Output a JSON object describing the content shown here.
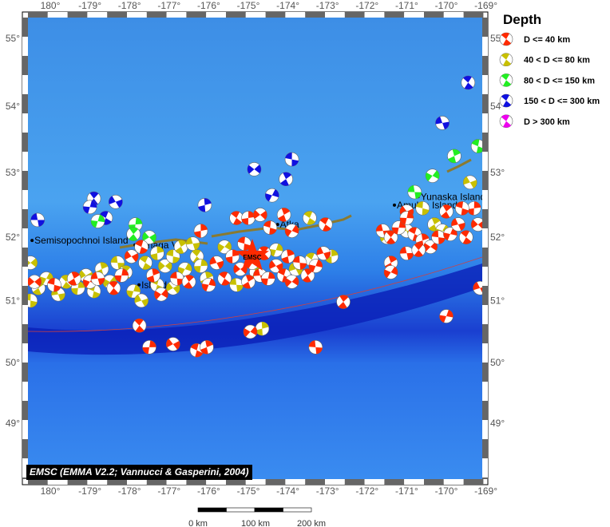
{
  "map": {
    "lon_ticks": [
      "180°",
      "-179°",
      "-178°",
      "-177°",
      "-176°",
      "-175°",
      "-174°",
      "-173°",
      "-172°",
      "-171°",
      "-170°",
      "-169°"
    ],
    "lon_values": [
      180,
      -179,
      -178,
      -177,
      -176,
      -175,
      -174,
      -173,
      -172,
      -171,
      -170,
      -169
    ],
    "lat_ticks": [
      "55°",
      "54°",
      "53°",
      "52°",
      "51°",
      "50°",
      "49°"
    ],
    "lat_values": [
      55,
      54,
      53,
      52,
      51,
      50,
      49
    ],
    "places": [
      {
        "name": "Semisopochnoi Island",
        "lon": 179.6,
        "lat": 51.95
      },
      {
        "name": "Tanaga Vo",
        "lon": -177.8,
        "lat": 51.88
      },
      {
        "name": "Island",
        "lon": -177.7,
        "lat": 51.25
      },
      {
        "name": "Atka",
        "lon": -174.2,
        "lat": 52.2
      },
      {
        "name": "Amukta Island",
        "lon": -171.25,
        "lat": 52.5
      },
      {
        "name": "Yunaska Island",
        "lon": -170.65,
        "lat": 52.63
      }
    ],
    "epicenter": {
      "label": "EMSC",
      "lon": -174.9,
      "lat": 51.7,
      "color": "#ff2a00"
    },
    "credit": "EMSC (EMMA V2.2; Vannucci & Gasperini, 2004)",
    "scale_labels": [
      "0 km",
      "100 km",
      "200 km"
    ]
  },
  "legend": {
    "title": "Depth",
    "items": [
      {
        "label": "D <= 40 km",
        "color": "#ff2a00"
      },
      {
        "label": "40 < D <= 80 km",
        "color": "#c8c000"
      },
      {
        "label": "80 < D <= 150 km",
        "color": "#22ee22"
      },
      {
        "label": "150 < D <= 300 km",
        "color": "#1010e0"
      },
      {
        "label": "D > 300 km",
        "color": "#ee00ee"
      }
    ]
  },
  "events": [
    [
      179.68,
      52.27,
      3
    ],
    [
      -178.9,
      52.6,
      3
    ],
    [
      -179.0,
      52.47,
      3
    ],
    [
      -178.35,
      52.55,
      3
    ],
    [
      -178.6,
      52.3,
      3
    ],
    [
      -176.1,
      52.5,
      3
    ],
    [
      -174.85,
      53.05,
      3
    ],
    [
      -173.9,
      53.2,
      3
    ],
    [
      -174.05,
      52.9,
      3
    ],
    [
      -174.4,
      52.65,
      3
    ],
    [
      -170.1,
      53.75,
      3
    ],
    [
      -169.45,
      54.35,
      3
    ],
    [
      -177.85,
      52.2,
      2
    ],
    [
      -177.5,
      52.0,
      2
    ],
    [
      -169.2,
      53.4,
      2
    ],
    [
      -169.8,
      53.25,
      2
    ],
    [
      -170.35,
      52.95,
      2
    ],
    [
      -170.8,
      52.7,
      2
    ],
    [
      -177.9,
      52.05,
      2
    ],
    [
      -178.8,
      52.25,
      2
    ],
    [
      -169.4,
      52.85,
      1
    ],
    [
      -173.45,
      52.3,
      1
    ],
    [
      -174.65,
      50.55,
      1
    ],
    [
      179.5,
      51.6,
      1
    ],
    [
      179.5,
      51.0,
      1
    ],
    [
      179.7,
      51.2,
      1
    ],
    [
      179.9,
      51.35,
      1
    ],
    [
      -179.8,
      51.1,
      1
    ],
    [
      -179.6,
      51.3,
      1
    ],
    [
      -179.3,
      51.2,
      1
    ],
    [
      -179.1,
      51.4,
      1
    ],
    [
      -178.9,
      51.15,
      1
    ],
    [
      -178.7,
      51.5,
      1
    ],
    [
      -178.5,
      51.3,
      1
    ],
    [
      -178.3,
      51.6,
      1
    ],
    [
      -178.1,
      51.45,
      1
    ],
    [
      -177.9,
      51.15,
      1
    ],
    [
      -177.7,
      51.0,
      1
    ],
    [
      -177.6,
      51.6,
      1
    ],
    [
      -177.3,
      51.75,
      1
    ],
    [
      -177.1,
      51.55,
      1
    ],
    [
      -176.9,
      51.7,
      1
    ],
    [
      -176.7,
      51.85,
      1
    ],
    [
      -176.6,
      51.5,
      1
    ],
    [
      -176.4,
      51.9,
      1
    ],
    [
      -176.3,
      51.7,
      1
    ],
    [
      -176.2,
      51.55,
      1
    ],
    [
      -176.9,
      51.2,
      1
    ],
    [
      -177.3,
      51.25,
      1
    ],
    [
      -176.05,
      51.35,
      1
    ],
    [
      -175.6,
      51.85,
      1
    ],
    [
      -175.3,
      51.25,
      1
    ],
    [
      -174.8,
      51.45,
      1
    ],
    [
      -174.3,
      51.8,
      1
    ],
    [
      -173.8,
      51.5,
      1
    ],
    [
      -173.4,
      51.65,
      1
    ],
    [
      -172.9,
      51.7,
      1
    ],
    [
      -171.5,
      52.0,
      1
    ],
    [
      -170.6,
      52.45,
      1
    ],
    [
      -170.3,
      52.2,
      1
    ],
    [
      -170.1,
      52.1,
      1
    ],
    [
      -171.0,
      52.1,
      1
    ],
    [
      -177.75,
      50.6,
      0
    ],
    [
      -177.5,
      50.25,
      0
    ],
    [
      -176.9,
      50.3,
      0
    ],
    [
      -176.3,
      50.2,
      0
    ],
    [
      -176.05,
      50.25,
      0
    ],
    [
      -174.95,
      50.5,
      0
    ],
    [
      -173.3,
      50.25,
      0
    ],
    [
      -172.6,
      50.98,
      0
    ],
    [
      -170.0,
      50.75,
      0
    ],
    [
      -169.15,
      51.2,
      0
    ],
    [
      -173.05,
      52.2,
      0
    ],
    [
      -176.2,
      52.1,
      0
    ],
    [
      179.6,
      51.3,
      0
    ],
    [
      -179.9,
      51.25,
      0
    ],
    [
      -179.4,
      51.35,
      0
    ],
    [
      -179.0,
      51.3,
      0
    ],
    [
      -178.8,
      51.35,
      0
    ],
    [
      -178.4,
      51.2,
      0
    ],
    [
      -178.2,
      51.4,
      0
    ],
    [
      -177.95,
      51.7,
      0
    ],
    [
      -177.7,
      51.85,
      0
    ],
    [
      -177.4,
      51.4,
      0
    ],
    [
      -177.2,
      51.1,
      0
    ],
    [
      -176.8,
      51.35,
      0
    ],
    [
      -176.5,
      51.3,
      0
    ],
    [
      -176.0,
      51.25,
      0
    ],
    [
      -175.8,
      51.6,
      0
    ],
    [
      -175.6,
      51.35,
      0
    ],
    [
      -175.4,
      51.7,
      0
    ],
    [
      -175.2,
      51.5,
      0
    ],
    [
      -175.1,
      51.9,
      0
    ],
    [
      -175.0,
      51.3,
      0
    ],
    [
      -174.9,
      51.6,
      0
    ],
    [
      -174.7,
      51.4,
      0
    ],
    [
      -174.6,
      51.75,
      0
    ],
    [
      -174.5,
      51.35,
      0
    ],
    [
      -174.3,
      51.55,
      0
    ],
    [
      -174.1,
      51.4,
      0
    ],
    [
      -174.0,
      51.7,
      0
    ],
    [
      -173.9,
      51.3,
      0
    ],
    [
      -173.7,
      51.6,
      0
    ],
    [
      -173.5,
      51.4,
      0
    ],
    [
      -173.3,
      51.55,
      0
    ],
    [
      -173.1,
      51.75,
      0
    ],
    [
      -175.3,
      52.3,
      0
    ],
    [
      -175.0,
      52.3,
      0
    ],
    [
      -174.7,
      52.35,
      0
    ],
    [
      -174.45,
      52.15,
      0
    ],
    [
      -174.1,
      52.35,
      0
    ],
    [
      -173.9,
      52.1,
      0
    ],
    [
      -171.6,
      52.1,
      0
    ],
    [
      -171.4,
      52.0,
      0
    ],
    [
      -171.2,
      52.15,
      0
    ],
    [
      -171.0,
      52.4,
      0
    ],
    [
      -170.8,
      52.05,
      0
    ],
    [
      -170.6,
      51.95,
      0
    ],
    [
      -170.4,
      51.85,
      0
    ],
    [
      -170.2,
      52.0,
      0
    ],
    [
      -170.0,
      52.4,
      0
    ],
    [
      -169.9,
      52.05,
      0
    ],
    [
      -169.7,
      52.2,
      0
    ],
    [
      -169.5,
      52.0,
      0
    ],
    [
      -169.3,
      52.45,
      0
    ],
    [
      -169.2,
      52.2,
      0
    ],
    [
      -169.6,
      52.45,
      0
    ],
    [
      -171.4,
      51.6,
      0
    ],
    [
      -171.4,
      51.45,
      0
    ],
    [
      -171.0,
      51.75,
      0
    ],
    [
      -170.7,
      51.8,
      0
    ],
    [
      -171.0,
      52.3,
      0
    ]
  ]
}
